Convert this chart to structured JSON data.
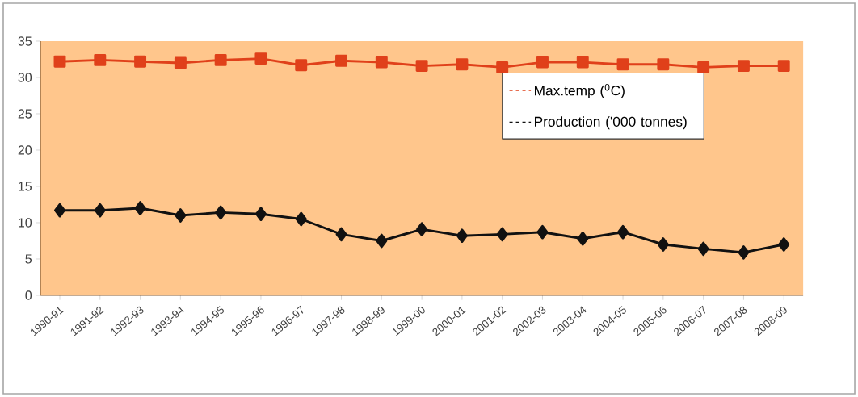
{
  "chart_data": {
    "type": "line",
    "categories": [
      "1990-91",
      "1991-92",
      "1992-93",
      "1993-94",
      "1994-95",
      "1995-96",
      "1996-97",
      "1997-98",
      "1998-99",
      "1999-00",
      "2000-01",
      "2001-02",
      "2002-03",
      "2003-04",
      "2004-05",
      "2005-06",
      "2006-07",
      "2007-08",
      "2008-09"
    ],
    "series": [
      {
        "name": "Max.temp ($^{0}$C)",
        "color": "#e0401a",
        "marker": "square",
        "values": [
          32.2,
          32.4,
          32.2,
          32.0,
          32.4,
          32.6,
          31.7,
          32.3,
          32.1,
          31.6,
          31.8,
          31.4,
          32.1,
          32.1,
          31.8,
          31.8,
          31.4,
          31.6,
          31.6
        ]
      },
      {
        "name": "Production ('000 tonnes)",
        "color": "#111111",
        "marker": "diamond",
        "values": [
          11.7,
          11.7,
          12.0,
          11.0,
          11.4,
          11.2,
          10.5,
          8.4,
          7.5,
          9.1,
          8.2,
          8.4,
          8.7,
          7.8,
          8.7,
          7.0,
          6.4,
          5.9,
          7.0
        ]
      }
    ],
    "ylim": [
      0,
      35
    ],
    "yticks": [
      0,
      5,
      10,
      15,
      20,
      25,
      30,
      35
    ],
    "grid": false,
    "legend": "top right",
    "line_style": "solid"
  }
}
